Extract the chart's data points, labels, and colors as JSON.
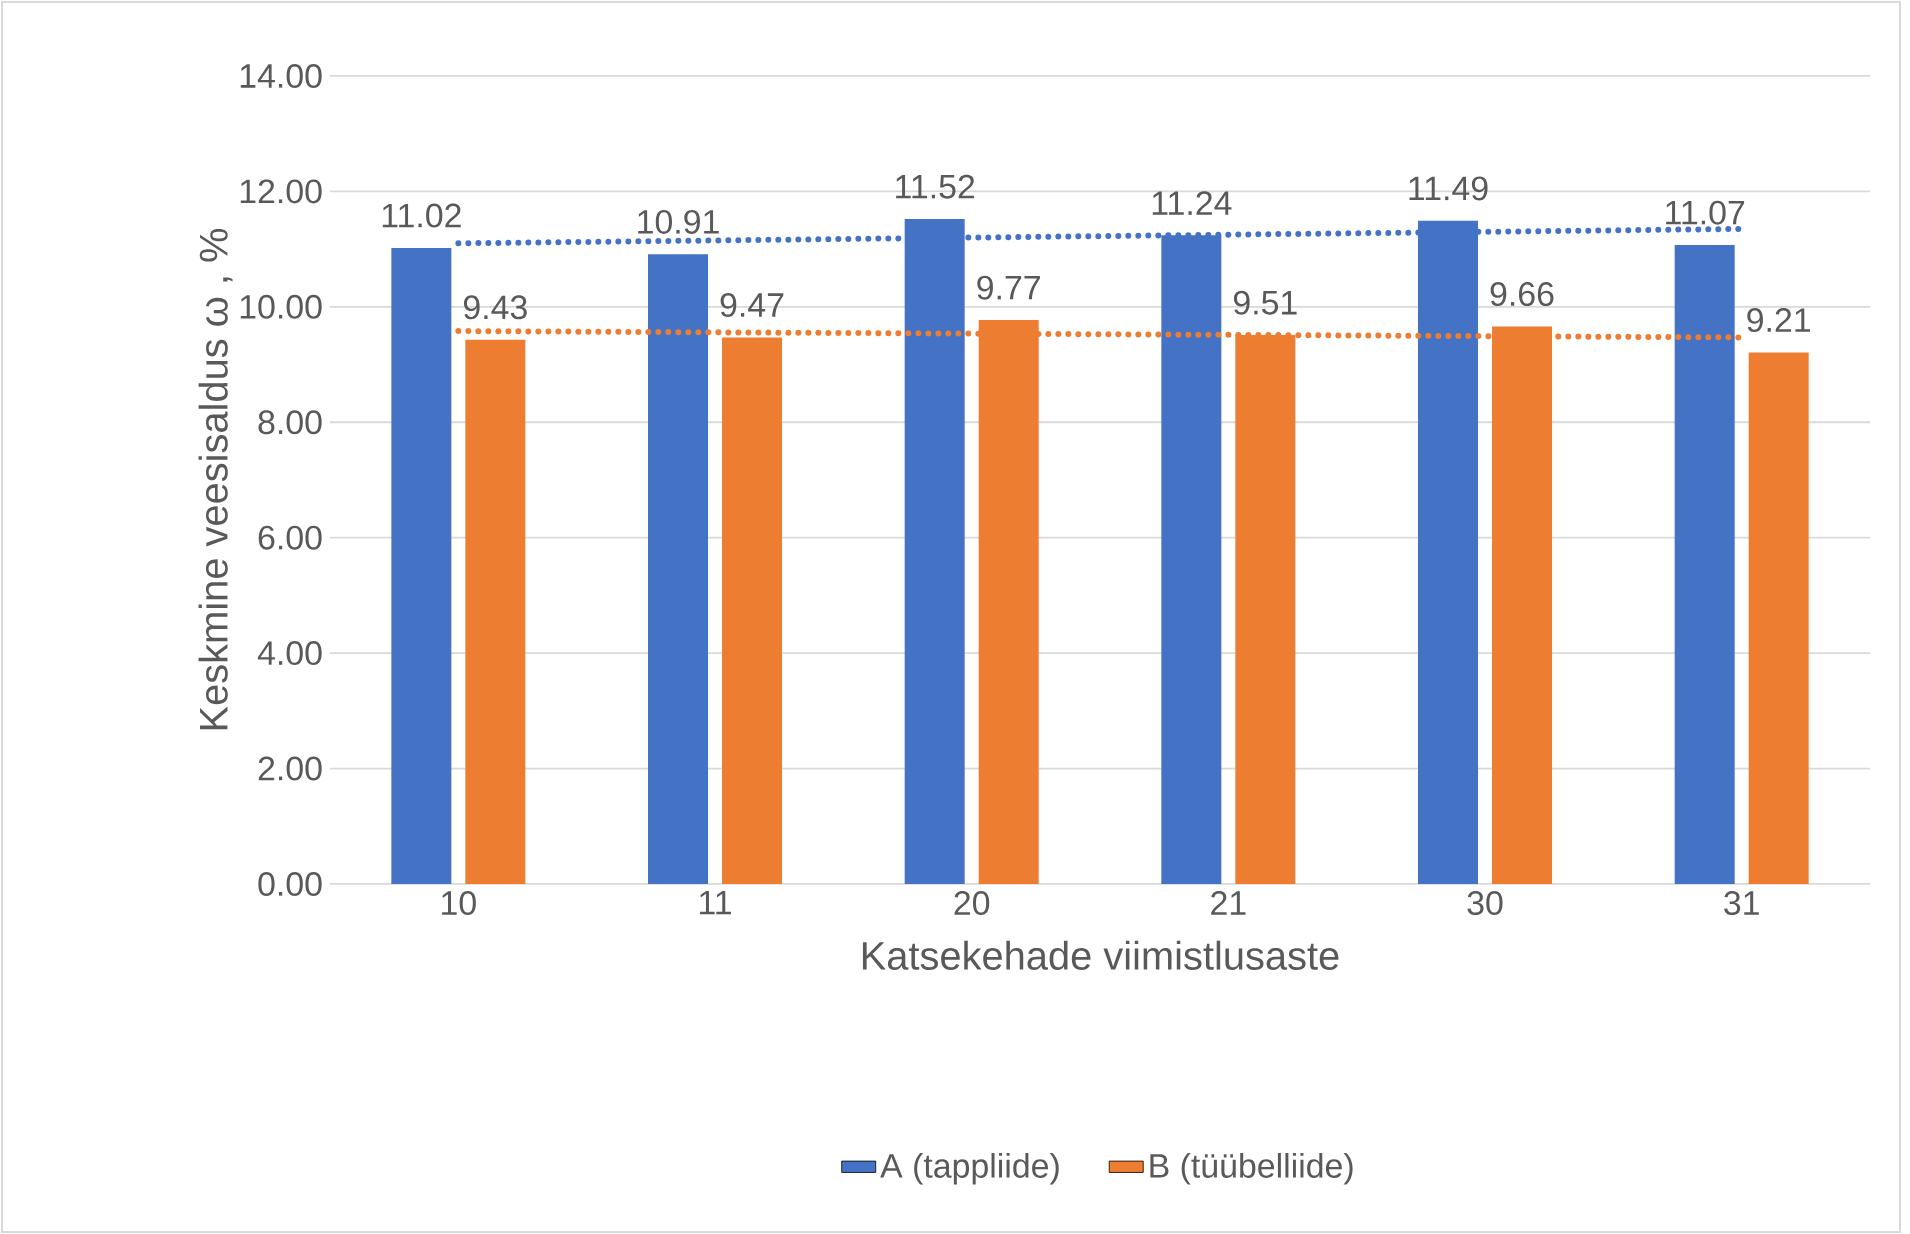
{
  "chart_data": {
    "type": "bar",
    "xlabel": "Katsekehade viimistlusaste",
    "ylabel": "Keskmine veesisaldus ω , %",
    "categories": [
      "10",
      "11",
      "20",
      "21",
      "30",
      "31"
    ],
    "series": [
      {
        "name": "A (tappliide)",
        "color": "#4472c4",
        "values": [
          11.02,
          10.91,
          11.52,
          11.24,
          11.49,
          11.07
        ],
        "value_labels": [
          "11.02",
          "10.91",
          "11.52",
          "11.24",
          "11.49",
          "11.07"
        ]
      },
      {
        "name": "B (tüübelliide)",
        "color": "#ed7d31",
        "values": [
          9.43,
          9.47,
          9.77,
          9.51,
          9.66,
          9.21
        ],
        "value_labels": [
          "9.43",
          "9.47",
          "9.77",
          "9.51",
          "9.66",
          "9.21"
        ]
      },
      {
        "type": "line",
        "color": "#4472c4",
        "line_style": "dotted",
        "x": [
          "10",
          "31"
        ],
        "values": [
          11.1,
          11.35
        ]
      },
      {
        "type": "line",
        "color": "#ed7d31",
        "line_style": "dotted",
        "x": [
          "10",
          "31"
        ],
        "values": [
          9.58,
          9.47
        ]
      }
    ],
    "ylim": [
      0,
      14
    ],
    "yticks": [
      {
        "value": 0,
        "label": "0.00"
      },
      {
        "value": 2,
        "label": "2.00"
      },
      {
        "value": 4,
        "label": "4.00"
      },
      {
        "value": 6,
        "label": "6.00"
      },
      {
        "value": 8,
        "label": "8.00"
      },
      {
        "value": 10,
        "label": "10.00"
      },
      {
        "value": 12,
        "label": "12.00"
      },
      {
        "value": 14,
        "label": "14.00"
      }
    ],
    "grid": "y",
    "legend": "bottom"
  }
}
